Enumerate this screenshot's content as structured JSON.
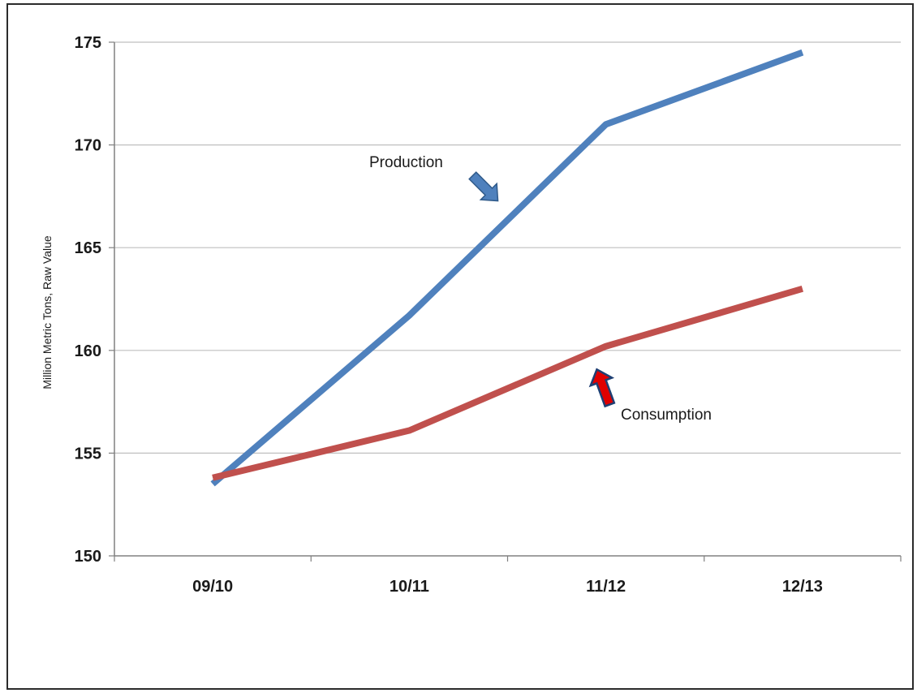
{
  "chart_data": {
    "type": "line",
    "categories": [
      "09/10",
      "10/11",
      "11/12",
      "12/13"
    ],
    "series": [
      {
        "name": "Production",
        "values": [
          153.5,
          161.7,
          171.0,
          174.5
        ],
        "color": "#4f81bd"
      },
      {
        "name": "Consumption",
        "values": [
          153.8,
          156.1,
          160.2,
          163.0
        ],
        "color": "#c0504d"
      }
    ],
    "ylabel": "Million Metric Tons, Raw Value",
    "ylim": [
      150,
      175
    ],
    "yticks": [
      150,
      155,
      160,
      165,
      170,
      175
    ],
    "grid": true,
    "legend": "inline annotations with arrows",
    "arrow_colors": {
      "production": "#4f81bd",
      "consumption": "#e00000"
    }
  }
}
